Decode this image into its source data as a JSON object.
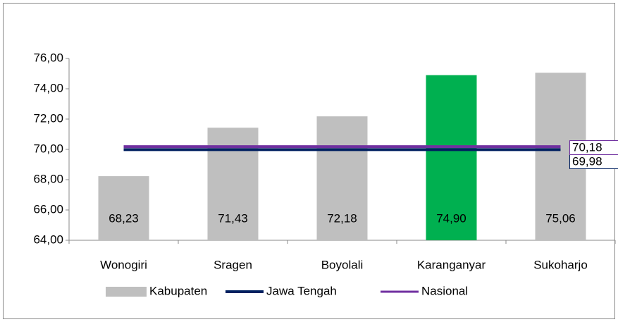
{
  "chart_data": {
    "type": "bar",
    "categories": [
      "Wonogiri",
      "Sragen",
      "Boyolali",
      "Karanganyar",
      "Sukoharjo"
    ],
    "series": [
      {
        "name": "Kabupaten",
        "type": "bar",
        "colors": [
          "#bfbfbf",
          "#bfbfbf",
          "#bfbfbf",
          "#00b050",
          "#bfbfbf"
        ],
        "values": [
          68.23,
          71.43,
          72.18,
          74.9,
          75.06
        ],
        "value_labels": [
          "68,23",
          "71,43",
          "72,18",
          "74,90",
          "75,06"
        ]
      },
      {
        "name": "Jawa Tengah",
        "type": "line",
        "color": "#002060",
        "values": [
          69.98,
          69.98,
          69.98,
          69.98,
          69.98
        ],
        "value_labels": [
          null,
          null,
          null,
          null,
          "69,98"
        ]
      },
      {
        "name": "Nasional",
        "type": "line",
        "color": "#7030a0",
        "values": [
          70.18,
          70.18,
          70.18,
          70.18,
          70.18
        ],
        "value_labels": [
          null,
          null,
          null,
          null,
          "70,18"
        ]
      }
    ],
    "ylim": [
      64,
      76
    ],
    "yticks": [
      {
        "value": 64,
        "label": "64,00"
      },
      {
        "value": 66,
        "label": "66,00"
      },
      {
        "value": 68,
        "label": "68,00"
      },
      {
        "value": 70,
        "label": "70,00"
      },
      {
        "value": 72,
        "label": "72,00"
      },
      {
        "value": 74,
        "label": "74,00"
      },
      {
        "value": 76,
        "label": "76,00"
      }
    ],
    "grid": false,
    "legend": "bottom"
  }
}
